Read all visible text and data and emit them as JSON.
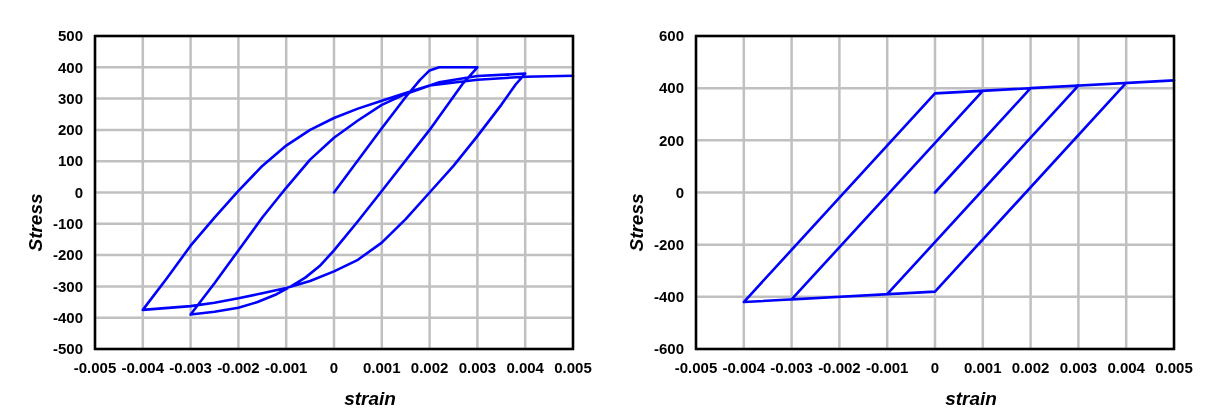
{
  "chart_data": [
    {
      "type": "line",
      "xlabel": "strain",
      "ylabel": "Stress",
      "xlim": [
        -0.005,
        0.005
      ],
      "ylim": [
        -500,
        500
      ],
      "xticks": [
        -0.005,
        -0.004,
        -0.003,
        -0.002,
        -0.001,
        0,
        0.001,
        0.002,
        0.003,
        0.004,
        0.005
      ],
      "yticks": [
        -500,
        -400,
        -300,
        -200,
        -100,
        0,
        100,
        200,
        300,
        400,
        500
      ],
      "grid": true,
      "series": [
        {
          "color": "#0000ff",
          "x": [
            0,
            0.001,
            0.0015,
            0.0018,
            0.002,
            0.0022,
            0.003,
            0.0027,
            0.002,
            0.001,
            0.0005,
            0,
            -0.0003,
            -0.0006,
            -0.0009,
            -0.0012,
            -0.0016,
            -0.002,
            -0.0025,
            -0.003,
            -0.0025,
            -0.002,
            -0.0015,
            -0.001,
            -0.0005,
            0,
            0.0005,
            0.001,
            0.0015,
            0.0022,
            0.003,
            0.004,
            0.0038,
            0.0035,
            0.003,
            0.0025,
            0.002,
            0.0015,
            0.001,
            0.0005,
            0,
            -0.0005,
            -0.001,
            -0.0015,
            -0.002,
            -0.0025,
            -0.003,
            -0.004,
            -0.0035,
            -0.003,
            -0.0025,
            -0.002,
            -0.0015,
            -0.001,
            -0.0005,
            0,
            0.0005,
            0.001,
            0.0015,
            0.002,
            0.003,
            0.004,
            0.005
          ],
          "values": [
            0,
            205,
            305,
            360,
            390,
            400,
            400,
            349,
            200,
            5,
            -92,
            -185,
            -235,
            -272,
            -300,
            -325,
            -350,
            -368,
            -381,
            -390,
            -290,
            -185,
            -80,
            15,
            105,
            175,
            230,
            280,
            315,
            352,
            372,
            380,
            345,
            280,
            180,
            85,
            0,
            -85,
            -160,
            -215,
            -252,
            -283,
            -305,
            -322,
            -338,
            -352,
            -363,
            -375,
            -275,
            -170,
            -80,
            5,
            85,
            150,
            200,
            238,
            268,
            293,
            318,
            342,
            360,
            370,
            373
          ]
        }
      ]
    },
    {
      "type": "line",
      "xlabel": "strain",
      "ylabel": "Stress",
      "xlim": [
        -0.005,
        0.005
      ],
      "ylim": [
        -600,
        600
      ],
      "xticks": [
        -0.005,
        -0.004,
        -0.003,
        -0.002,
        -0.001,
        0,
        0.001,
        0.002,
        0.003,
        0.004,
        0.005
      ],
      "yticks": [
        -600,
        -400,
        -200,
        0,
        200,
        400,
        600
      ],
      "grid": true,
      "series": [
        {
          "color": "#0000ff",
          "x": [
            0,
            0.002,
            0.003,
            -0.001,
            -0.003,
            0.001,
            0.004,
            0,
            -0.004,
            0,
            0.005
          ],
          "values": [
            0,
            400,
            410,
            -390,
            -410,
            390,
            420,
            -380,
            -420,
            380,
            430
          ]
        }
      ]
    }
  ]
}
